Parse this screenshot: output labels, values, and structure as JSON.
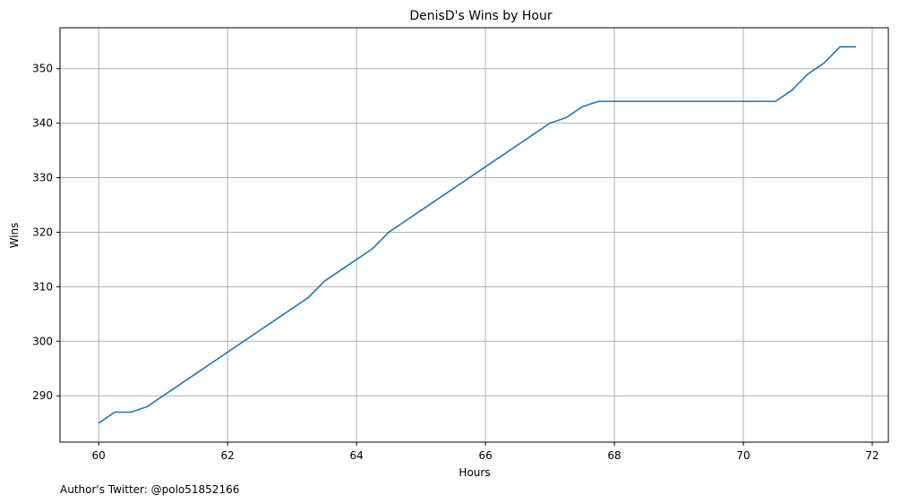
{
  "chart_data": {
    "type": "line",
    "title": "DenisD's Wins by Hour",
    "xlabel": "Hours",
    "ylabel": "Wins",
    "xlim": [
      59.4,
      72.25
    ],
    "ylim": [
      281.5,
      357.5
    ],
    "xticks": [
      60,
      62,
      64,
      66,
      68,
      70,
      72
    ],
    "yticks": [
      290,
      300,
      310,
      320,
      330,
      340,
      350
    ],
    "grid": true,
    "line_color": "#1f77b4",
    "grid_color": "#b0b0b0",
    "series": [
      {
        "x": [
          60,
          60.25,
          60.5,
          60.75,
          61,
          61.25,
          61.5,
          61.75,
          62,
          62.25,
          62.5,
          62.75,
          63,
          63.25,
          63.5,
          63.75,
          64,
          64.25,
          64.5,
          64.75,
          65,
          65.25,
          65.5,
          65.75,
          66,
          66.25,
          66.5,
          66.75,
          67,
          67.25,
          67.5,
          67.75,
          68,
          68.25,
          68.5,
          68.75,
          69,
          69.25,
          69.5,
          69.75,
          70,
          70.25,
          70.5,
          70.75,
          71,
          71.25,
          71.5,
          71.75
        ],
        "values": [
          285,
          287,
          287,
          288,
          290,
          292,
          294,
          296,
          298,
          300,
          302,
          304,
          306,
          308,
          311,
          313,
          315,
          317,
          320,
          322,
          324,
          326,
          328,
          330,
          332,
          334,
          336,
          338,
          340,
          341,
          343,
          344,
          344,
          344,
          344,
          344,
          344,
          344,
          344,
          344,
          344,
          344,
          344,
          346,
          349,
          351,
          354,
          354
        ]
      }
    ]
  },
  "footer": {
    "author": "Author's Twitter: @polo51852166"
  }
}
